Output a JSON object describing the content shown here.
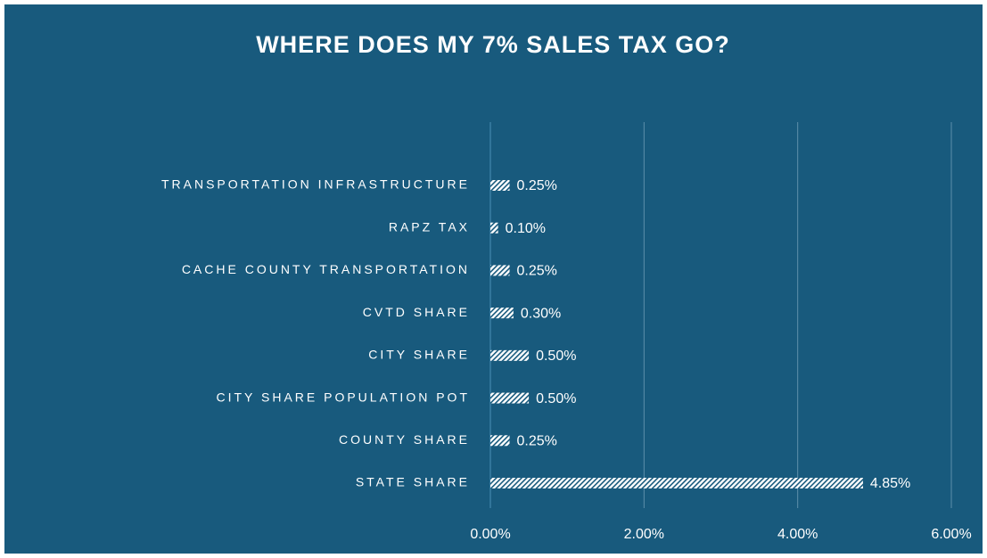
{
  "chart_data": {
    "type": "bar",
    "orientation": "horizontal",
    "title": "WHERE DOES MY 7% SALES TAX GO?",
    "categories": [
      "TRANSPORTATION INFRASTRUCTURE",
      "RAPZ TAX",
      "CACHE COUNTY TRANSPORTATION",
      "CVTD SHARE",
      "CITY SHARE",
      "CITY SHARE POPULATION POT",
      "COUNTY SHARE",
      "STATE SHARE"
    ],
    "values": [
      0.25,
      0.1,
      0.25,
      0.3,
      0.5,
      0.5,
      0.25,
      4.85
    ],
    "value_labels": [
      "0.25%",
      "0.10%",
      "0.25%",
      "0.30%",
      "0.50%",
      "0.50%",
      "0.25%",
      "4.85%"
    ],
    "color": "#ffffff",
    "xlim": [
      0,
      6
    ],
    "xticks": [
      {
        "value": 0,
        "label": "0.00%"
      },
      {
        "value": 2,
        "label": "2.00%"
      },
      {
        "value": 4,
        "label": "4.00%"
      },
      {
        "value": 6,
        "label": "6.00%"
      }
    ],
    "grid": true
  }
}
